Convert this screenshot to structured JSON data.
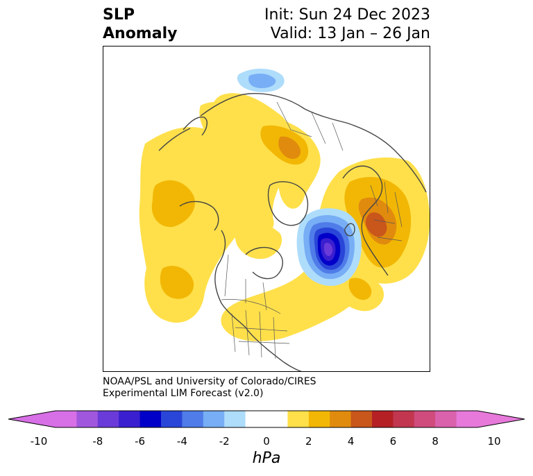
{
  "header": {
    "title_line1": "SLP",
    "title_line2": "Anomaly",
    "init": "Init: Sun 24 Dec 2023",
    "valid": "Valid: 13 Jan – 26 Jan"
  },
  "credit": {
    "line1": "NOAA/PSL and University of Colorado/CIRES",
    "line2": "Experimental LIM Forecast (v2.0)"
  },
  "colorbar": {
    "unit": "hPa",
    "ticks": [
      "-10",
      "-8",
      "-6",
      "-4",
      "-2",
      "0",
      "2",
      "4",
      "6",
      "8",
      "10"
    ],
    "colors": [
      "#d76fe6",
      "#a057de",
      "#6a3bd8",
      "#3a1fd0",
      "#0000c8",
      "#2a46d8",
      "#4f7ce8",
      "#77aef5",
      "#aedcfb",
      "#ffffff",
      "#ffffff",
      "#ffe04a",
      "#f2b705",
      "#e08b0e",
      "#c9561a",
      "#b52025",
      "#c2364f",
      "#cf4c7d",
      "#da62ad",
      "#e679da"
    ],
    "under_color": "#d76fe6",
    "over_color": "#e679da"
  },
  "map": {
    "projection": "north-polar-stereographic",
    "field": "sea level pressure anomaly"
  }
}
